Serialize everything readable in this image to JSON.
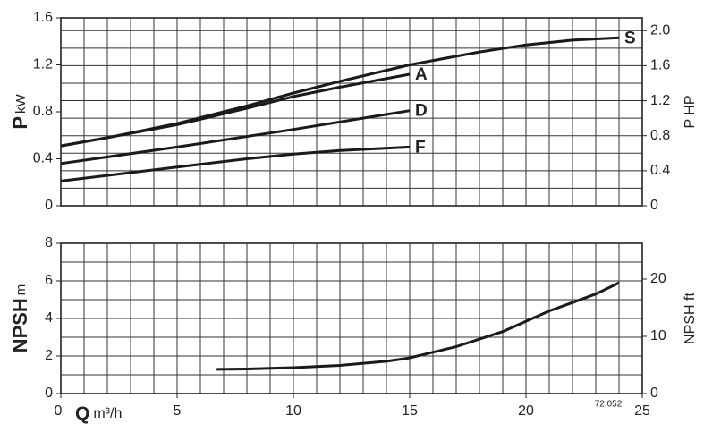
{
  "chart_data": [
    {
      "type": "line",
      "ylabel_symbol": "P",
      "ylabel_unit": "kW",
      "y2label": "P HP",
      "xlim": [
        0,
        25
      ],
      "xgrid": [
        0,
        1,
        2,
        3,
        4,
        5,
        6,
        7,
        8,
        9,
        10,
        11,
        12,
        13,
        14,
        15,
        16,
        17,
        18,
        19,
        20,
        21,
        22,
        23,
        24,
        25
      ],
      "ylim": [
        0,
        1.6
      ],
      "yticks": [
        0,
        0.4,
        0.8,
        1.2,
        1.6
      ],
      "y2lim": [
        0,
        2.1456
      ],
      "y2ticks": [
        0,
        0.4,
        0.8,
        1.2,
        1.6,
        {
          "value": 2,
          "label": "2.0"
        }
      ],
      "y2grid": [
        0,
        0.2,
        0.4,
        0.6,
        0.8,
        1,
        1.2,
        1.4,
        1.6,
        1.8,
        2
      ],
      "color": "#1a1a1a",
      "series": [
        {
          "name": "S",
          "x": [
            0,
            2,
            5,
            8,
            10,
            12,
            15,
            18,
            20,
            22,
            24
          ],
          "values": [
            0.51,
            0.58,
            0.7,
            0.85,
            0.96,
            1.06,
            1.2,
            1.31,
            1.37,
            1.41,
            1.43
          ]
        },
        {
          "name": "A",
          "x": [
            0,
            2,
            5,
            8,
            10,
            12,
            15
          ],
          "values": [
            0.51,
            0.58,
            0.69,
            0.83,
            0.93,
            1.01,
            1.12
          ]
        },
        {
          "name": "D",
          "x": [
            0,
            5,
            10,
            15
          ],
          "values": [
            0.36,
            0.5,
            0.65,
            0.81
          ]
        },
        {
          "name": "F",
          "x": [
            0,
            5,
            8,
            10,
            12,
            15
          ],
          "values": [
            0.21,
            0.33,
            0.4,
            0.44,
            0.47,
            0.5
          ]
        }
      ]
    },
    {
      "type": "line",
      "ylabel_symbol": "NPSH",
      "ylabel_unit": "m",
      "y2label": "NPSH ft",
      "xlabel_symbol": "Q",
      "xlabel_unit": "m³/h",
      "note": "72.052",
      "xlim": [
        0,
        25
      ],
      "xticks": [
        0,
        5,
        10,
        15,
        20,
        25
      ],
      "xgrid": [
        0,
        1,
        2,
        3,
        4,
        5,
        6,
        7,
        8,
        9,
        10,
        11,
        12,
        13,
        14,
        15,
        16,
        17,
        18,
        19,
        20,
        21,
        22,
        23,
        24,
        25
      ],
      "ylim": [
        0,
        8
      ],
      "yticks": [
        0,
        2,
        4,
        6,
        8
      ],
      "ygrid": [
        0,
        1,
        2,
        3,
        4,
        5,
        6,
        7,
        8
      ],
      "y2lim": [
        0,
        26.25
      ],
      "y2ticks": [
        0,
        10,
        20
      ],
      "color": "#1a1a1a",
      "series": [
        {
          "name": null,
          "x": [
            6.7,
            8,
            10,
            12,
            14,
            15,
            17,
            19,
            21,
            23,
            24
          ],
          "values": [
            1.29,
            1.31,
            1.38,
            1.5,
            1.72,
            1.9,
            2.5,
            3.3,
            4.4,
            5.3,
            5.9
          ]
        }
      ]
    }
  ]
}
